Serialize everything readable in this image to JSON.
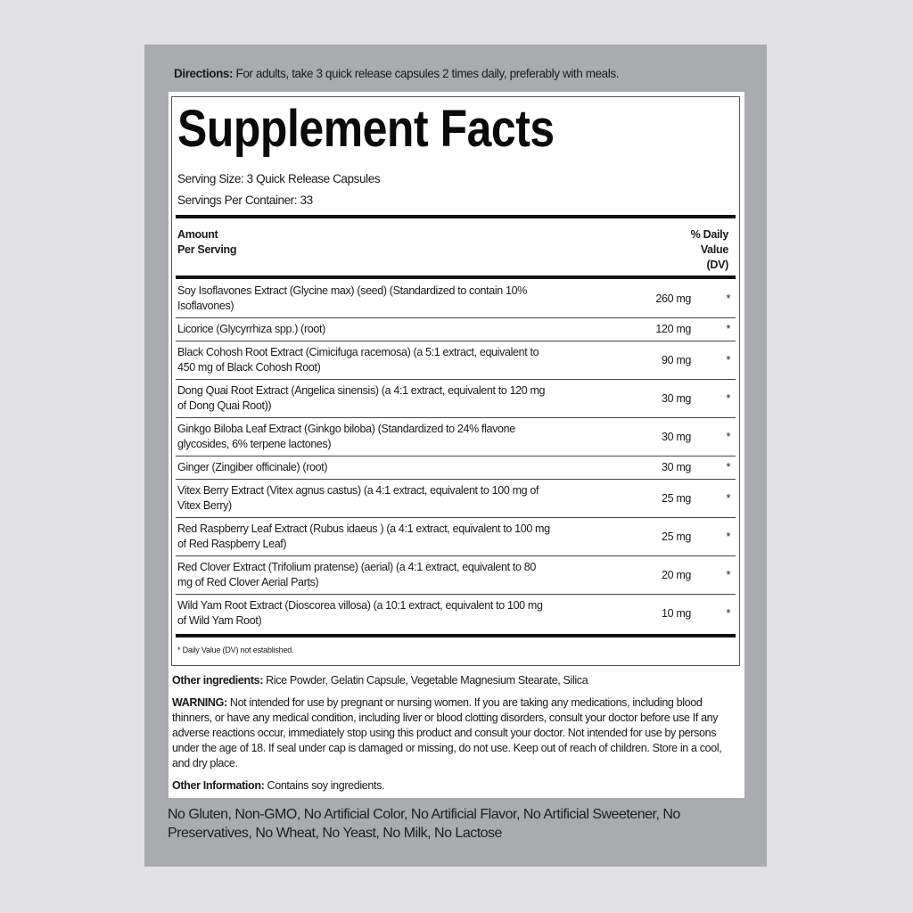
{
  "directions": {
    "label": "Directions:",
    "text": " For adults, take 3 quick release capsules 2 times daily, preferably with meals."
  },
  "title": "Supplement Facts",
  "serving_size": "Serving Size: 3 Quick Release Capsules",
  "servings_per_container": "Servings Per Container: 33",
  "header": {
    "amount_line1": "Amount",
    "amount_line2": "Per Serving",
    "dv_line1": "% Daily",
    "dv_line2": "Value",
    "dv_line3": "(DV)"
  },
  "ingredients": [
    {
      "name": "Soy Isoflavones Extract (Glycine max) (seed) (Standardized to contain 10% Isoflavones)",
      "amount": "260 mg",
      "dv": "*"
    },
    {
      "name": "Licorice (Glycyrrhiza spp.) (root)",
      "amount": "120 mg",
      "dv": "*"
    },
    {
      "name": "Black Cohosh Root Extract (Cimicifuga racemosa) (a 5:1 extract, equivalent to 450 mg of Black Cohosh Root)",
      "amount": "90 mg",
      "dv": "*"
    },
    {
      "name": "Dong Quai Root Extract (Angelica sinensis) (a 4:1 extract, equivalent to 120 mg of Dong Quai Root))",
      "amount": "30 mg",
      "dv": "*"
    },
    {
      "name": "Ginkgo Biloba Leaf Extract (Ginkgo biloba) (Standardized to 24% flavone glycosides, 6% terpene lactones)",
      "amount": "30 mg",
      "dv": "*"
    },
    {
      "name": "Ginger (Zingiber officinale) (root)",
      "amount": "30 mg",
      "dv": "*"
    },
    {
      "name": "Vitex Berry Extract (Vitex agnus castus) (a 4:1 extract, equivalent to 100 mg of Vitex Berry)",
      "amount": "25 mg",
      "dv": "*"
    },
    {
      "name": "Red Raspberry Leaf Extract (Rubus idaeus ) (a 4:1 extract, equivalent to 100 mg of Red Raspberry Leaf)",
      "amount": "25 mg",
      "dv": "*"
    },
    {
      "name": "Red Clover Extract (Trifolium pratense) (aerial) (a 4:1 extract, equivalent to 80 mg of Red Clover Aerial Parts)",
      "amount": "20 mg",
      "dv": "*"
    },
    {
      "name": "Wild Yam Root Extract (Dioscorea villosa) (a 10:1 extract, equivalent to 100 mg of Wild Yam Root)",
      "amount": "10 mg",
      "dv": "*"
    }
  ],
  "footnote": "* Daily Value (DV) not established.",
  "other_ingredients": {
    "label": "Other ingredients:",
    "text": " Rice Powder, Gelatin Capsule, Vegetable Magnesium Stearate, Silica"
  },
  "warning": {
    "label": "WARNING:",
    "text": " Not intended for use by pregnant or nursing women. If you are taking any medications, including blood thinners, or have any medical condition, including liver or blood clotting disorders, consult your doctor before use If any adverse reactions occur, immediately stop using this product and consult your doctor. Not intended for use by persons under the age of 18. If seal under cap is damaged or missing, do not use. Keep out of reach of children. Store in a cool, and dry place."
  },
  "other_information": {
    "label": "Other Information:",
    "text": " Contains soy ingredients."
  },
  "claims": "No Gluten, Non-GMO, No Artificial Color, No Artificial Flavor, No Artificial Sweetener, No Preservatives, No Wheat, No Yeast, No Milk, No Lactose"
}
